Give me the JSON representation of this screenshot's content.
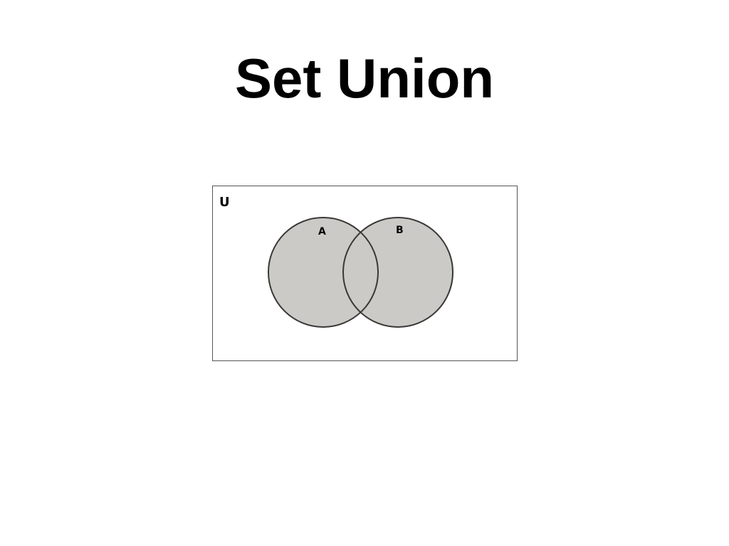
{
  "slide": {
    "title": "Set Union"
  },
  "diagram": {
    "universe_label": "U",
    "set_a_label": "A",
    "set_b_label": "B",
    "colors": {
      "frame": "#555555",
      "set_fill": "#cccac7",
      "set_stroke": "#3a3835",
      "background": "#ffffff"
    },
    "shaded_region": "A ∪ B"
  }
}
